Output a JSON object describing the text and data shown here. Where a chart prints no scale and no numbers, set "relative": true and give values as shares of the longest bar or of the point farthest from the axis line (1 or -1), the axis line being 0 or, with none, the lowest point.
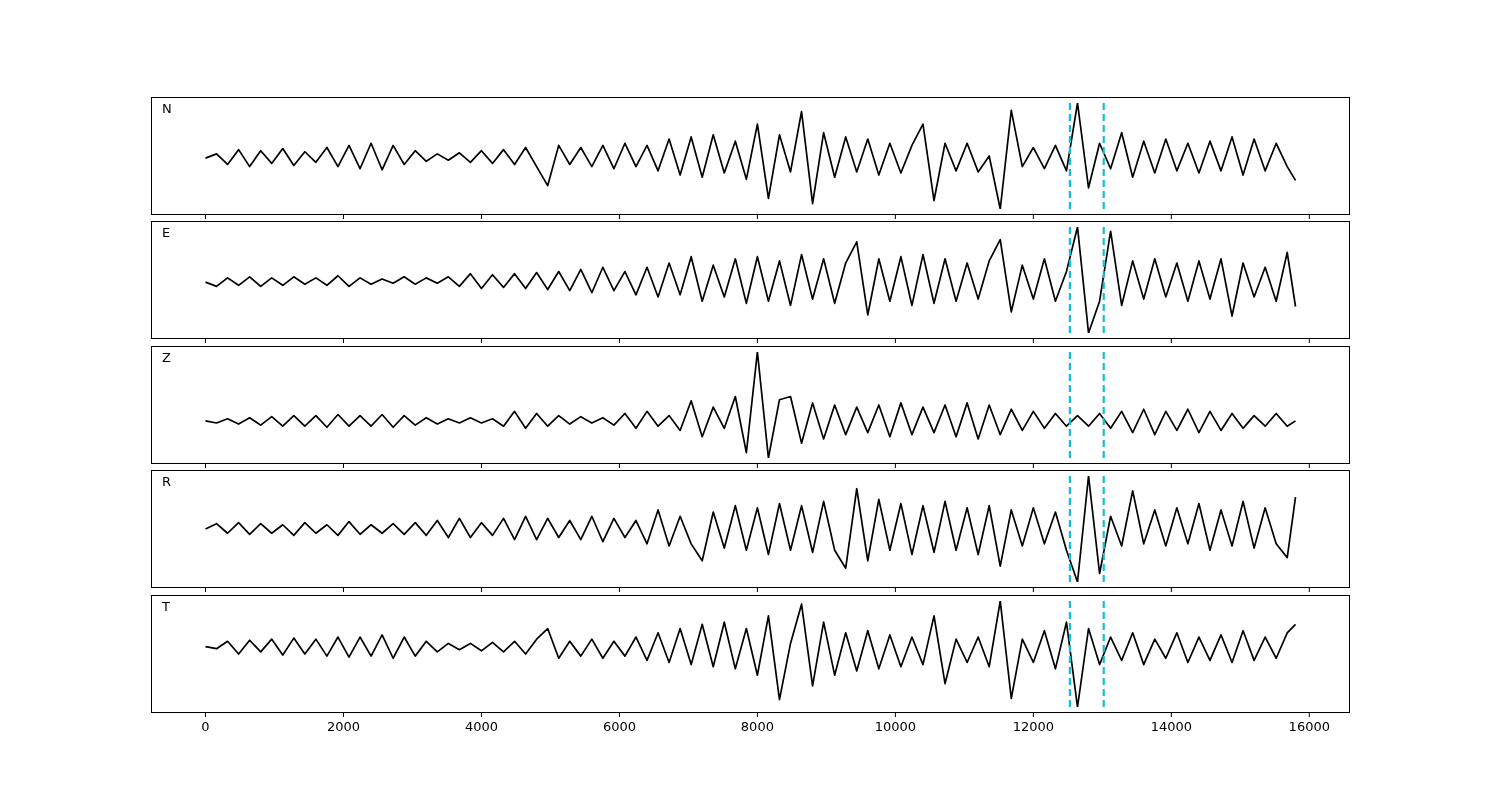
{
  "chart_data": [
    {
      "type": "line",
      "title": "N",
      "relative": true,
      "tick_labels": false,
      "xlim": [
        -790,
        16590
      ],
      "xticks": [
        0,
        2000,
        4000,
        6000,
        8000,
        10000,
        12000,
        14000,
        16000
      ],
      "x": [
        0,
        160,
        320,
        480,
        640,
        800,
        960,
        1120,
        1280,
        1440,
        1600,
        1760,
        1920,
        2080,
        2240,
        2400,
        2560,
        2720,
        2880,
        3040,
        3200,
        3360,
        3520,
        3680,
        3840,
        4000,
        4160,
        4320,
        4480,
        4640,
        4800,
        4960,
        5120,
        5280,
        5440,
        5600,
        5760,
        5920,
        6080,
        6240,
        6400,
        6560,
        6720,
        6880,
        7040,
        7200,
        7360,
        7520,
        7680,
        7840,
        8000,
        8160,
        8320,
        8480,
        8640,
        8800,
        8960,
        9120,
        9280,
        9440,
        9600,
        9760,
        9920,
        10080,
        10240,
        10400,
        10560,
        10720,
        10880,
        11040,
        11200,
        11360,
        11520,
        11680,
        11840,
        12000,
        12160,
        12320,
        12480,
        12640,
        12800,
        12960,
        13120,
        13280,
        13440,
        13600,
        13760,
        13920,
        14080,
        14240,
        14400,
        14560,
        14720,
        14880,
        15040,
        15200,
        15360,
        15520,
        15680,
        15800
      ],
      "ref_lines": [
        {
          "axis": "x",
          "value": 12530,
          "color": "#17becf",
          "line_style": "dashed"
        },
        {
          "axis": "x",
          "value": 13020,
          "color": "#17becf",
          "line_style": "dashed"
        }
      ],
      "series": [
        {
          "color": "#000000",
          "values": [
            0.48,
            0.52,
            0.42,
            0.56,
            0.4,
            0.55,
            0.43,
            0.57,
            0.41,
            0.54,
            0.44,
            0.58,
            0.4,
            0.6,
            0.38,
            0.62,
            0.37,
            0.6,
            0.42,
            0.55,
            0.45,
            0.52,
            0.46,
            0.53,
            0.44,
            0.55,
            0.43,
            0.56,
            0.42,
            0.58,
            0.4,
            0.22,
            0.6,
            0.42,
            0.58,
            0.4,
            0.6,
            0.38,
            0.62,
            0.4,
            0.6,
            0.36,
            0.66,
            0.32,
            0.68,
            0.3,
            0.7,
            0.34,
            0.64,
            0.28,
            0.8,
            0.1,
            0.7,
            0.35,
            0.92,
            0.05,
            0.72,
            0.3,
            0.68,
            0.35,
            0.66,
            0.32,
            0.62,
            0.34,
            0.6,
            0.8,
            0.08,
            0.62,
            0.36,
            0.62,
            0.35,
            0.5,
            0.0,
            0.93,
            0.4,
            0.58,
            0.38,
            0.6,
            0.36,
            1.0,
            0.2,
            0.62,
            0.38,
            0.72,
            0.3,
            0.64,
            0.34,
            0.66,
            0.36,
            0.62,
            0.34,
            0.64,
            0.36,
            0.68,
            0.32,
            0.66,
            0.36,
            0.62,
            0.4,
            0.27
          ]
        }
      ]
    },
    {
      "type": "line",
      "title": "E",
      "relative": true,
      "tick_labels": false,
      "xlim": [
        -790,
        16590
      ],
      "xticks": [
        0,
        2000,
        4000,
        6000,
        8000,
        10000,
        12000,
        14000,
        16000
      ],
      "x": [
        0,
        160,
        320,
        480,
        640,
        800,
        960,
        1120,
        1280,
        1440,
        1600,
        1760,
        1920,
        2080,
        2240,
        2400,
        2560,
        2720,
        2880,
        3040,
        3200,
        3360,
        3520,
        3680,
        3840,
        4000,
        4160,
        4320,
        4480,
        4640,
        4800,
        4960,
        5120,
        5280,
        5440,
        5600,
        5760,
        5920,
        6080,
        6240,
        6400,
        6560,
        6720,
        6880,
        7040,
        7200,
        7360,
        7520,
        7680,
        7840,
        8000,
        8160,
        8320,
        8480,
        8640,
        8800,
        8960,
        9120,
        9280,
        9440,
        9600,
        9760,
        9920,
        10080,
        10240,
        10400,
        10560,
        10720,
        10880,
        11040,
        11200,
        11360,
        11520,
        11680,
        11840,
        12000,
        12160,
        12320,
        12480,
        12640,
        12800,
        12960,
        13120,
        13280,
        13440,
        13600,
        13760,
        13920,
        14080,
        14240,
        14400,
        14560,
        14720,
        14880,
        15040,
        15200,
        15360,
        15520,
        15680,
        15800
      ],
      "ref_lines": [
        {
          "axis": "x",
          "value": 12530,
          "color": "#17becf",
          "line_style": "dashed"
        },
        {
          "axis": "x",
          "value": 13020,
          "color": "#17becf",
          "line_style": "dashed"
        }
      ],
      "series": [
        {
          "color": "#000000",
          "values": [
            0.48,
            0.44,
            0.52,
            0.45,
            0.53,
            0.44,
            0.52,
            0.45,
            0.53,
            0.46,
            0.52,
            0.45,
            0.54,
            0.44,
            0.52,
            0.46,
            0.51,
            0.47,
            0.53,
            0.46,
            0.52,
            0.47,
            0.53,
            0.44,
            0.56,
            0.42,
            0.55,
            0.43,
            0.56,
            0.42,
            0.57,
            0.41,
            0.58,
            0.4,
            0.6,
            0.38,
            0.62,
            0.4,
            0.58,
            0.36,
            0.62,
            0.34,
            0.66,
            0.36,
            0.72,
            0.3,
            0.64,
            0.34,
            0.7,
            0.28,
            0.72,
            0.3,
            0.68,
            0.26,
            0.74,
            0.32,
            0.7,
            0.28,
            0.66,
            0.86,
            0.17,
            0.7,
            0.3,
            0.72,
            0.26,
            0.74,
            0.28,
            0.7,
            0.3,
            0.66,
            0.32,
            0.68,
            0.88,
            0.2,
            0.64,
            0.32,
            0.7,
            0.3,
            0.58,
            1.0,
            0.0,
            0.3,
            0.96,
            0.26,
            0.68,
            0.32,
            0.7,
            0.34,
            0.66,
            0.3,
            0.68,
            0.32,
            0.7,
            0.16,
            0.66,
            0.34,
            0.62,
            0.3,
            0.76,
            0.25
          ]
        }
      ]
    },
    {
      "type": "line",
      "title": "Z",
      "relative": true,
      "tick_labels": false,
      "xlim": [
        -790,
        16590
      ],
      "xticks": [
        0,
        2000,
        4000,
        6000,
        8000,
        10000,
        12000,
        14000,
        16000
      ],
      "x": [
        0,
        160,
        320,
        480,
        640,
        800,
        960,
        1120,
        1280,
        1440,
        1600,
        1760,
        1920,
        2080,
        2240,
        2400,
        2560,
        2720,
        2880,
        3040,
        3200,
        3360,
        3520,
        3680,
        3840,
        4000,
        4160,
        4320,
        4480,
        4640,
        4800,
        4960,
        5120,
        5280,
        5440,
        5600,
        5760,
        5920,
        6080,
        6240,
        6400,
        6560,
        6720,
        6880,
        7040,
        7200,
        7360,
        7520,
        7680,
        7840,
        8000,
        8160,
        8320,
        8480,
        8640,
        8800,
        8960,
        9120,
        9280,
        9440,
        9600,
        9760,
        9920,
        10080,
        10240,
        10400,
        10560,
        10720,
        10880,
        11040,
        11200,
        11360,
        11520,
        11680,
        11840,
        12000,
        12160,
        12320,
        12480,
        12640,
        12800,
        12960,
        13120,
        13280,
        13440,
        13600,
        13760,
        13920,
        14080,
        14240,
        14400,
        14560,
        14720,
        14880,
        15040,
        15200,
        15360,
        15520,
        15680,
        15800
      ],
      "ref_lines": [
        {
          "axis": "x",
          "value": 12530,
          "color": "#17becf",
          "line_style": "dashed"
        },
        {
          "axis": "x",
          "value": 13020,
          "color": "#17becf",
          "line_style": "dashed"
        }
      ],
      "series": [
        {
          "color": "#000000",
          "values": [
            0.35,
            0.33,
            0.37,
            0.32,
            0.38,
            0.31,
            0.39,
            0.3,
            0.4,
            0.3,
            0.4,
            0.29,
            0.41,
            0.3,
            0.4,
            0.3,
            0.41,
            0.29,
            0.4,
            0.31,
            0.38,
            0.32,
            0.37,
            0.33,
            0.38,
            0.33,
            0.37,
            0.3,
            0.44,
            0.28,
            0.42,
            0.3,
            0.4,
            0.32,
            0.39,
            0.33,
            0.38,
            0.31,
            0.42,
            0.28,
            0.44,
            0.3,
            0.4,
            0.26,
            0.54,
            0.2,
            0.48,
            0.28,
            0.58,
            0.05,
            1.0,
            0.0,
            0.55,
            0.58,
            0.14,
            0.52,
            0.18,
            0.5,
            0.22,
            0.48,
            0.24,
            0.5,
            0.2,
            0.52,
            0.22,
            0.48,
            0.24,
            0.5,
            0.2,
            0.52,
            0.18,
            0.5,
            0.22,
            0.46,
            0.26,
            0.44,
            0.28,
            0.42,
            0.3,
            0.4,
            0.3,
            0.42,
            0.28,
            0.44,
            0.24,
            0.46,
            0.22,
            0.44,
            0.26,
            0.46,
            0.24,
            0.44,
            0.26,
            0.42,
            0.28,
            0.4,
            0.3,
            0.42,
            0.3,
            0.35
          ]
        }
      ]
    },
    {
      "type": "line",
      "title": "R",
      "relative": true,
      "tick_labels": false,
      "xlim": [
        -790,
        16590
      ],
      "xticks": [
        0,
        2000,
        4000,
        6000,
        8000,
        10000,
        12000,
        14000,
        16000
      ],
      "x": [
        0,
        160,
        320,
        480,
        640,
        800,
        960,
        1120,
        1280,
        1440,
        1600,
        1760,
        1920,
        2080,
        2240,
        2400,
        2560,
        2720,
        2880,
        3040,
        3200,
        3360,
        3520,
        3680,
        3840,
        4000,
        4160,
        4320,
        4480,
        4640,
        4800,
        4960,
        5120,
        5280,
        5440,
        5600,
        5760,
        5920,
        6080,
        6240,
        6400,
        6560,
        6720,
        6880,
        7040,
        7200,
        7360,
        7520,
        7680,
        7840,
        8000,
        8160,
        8320,
        8480,
        8640,
        8800,
        8960,
        9120,
        9280,
        9440,
        9600,
        9760,
        9920,
        10080,
        10240,
        10400,
        10560,
        10720,
        10880,
        11040,
        11200,
        11360,
        11520,
        11680,
        11840,
        12000,
        12160,
        12320,
        12480,
        12640,
        12800,
        12960,
        13120,
        13280,
        13440,
        13600,
        13760,
        13920,
        14080,
        14240,
        14400,
        14560,
        14720,
        14880,
        15040,
        15200,
        15360,
        15520,
        15680,
        15800
      ],
      "ref_lines": [
        {
          "axis": "x",
          "value": 12530,
          "color": "#17becf",
          "line_style": "dashed"
        },
        {
          "axis": "x",
          "value": 13020,
          "color": "#17becf",
          "line_style": "dashed"
        }
      ],
      "series": [
        {
          "color": "#000000",
          "values": [
            0.5,
            0.55,
            0.46,
            0.56,
            0.45,
            0.55,
            0.46,
            0.54,
            0.44,
            0.56,
            0.46,
            0.54,
            0.44,
            0.57,
            0.45,
            0.54,
            0.46,
            0.55,
            0.45,
            0.56,
            0.44,
            0.58,
            0.42,
            0.6,
            0.42,
            0.56,
            0.44,
            0.6,
            0.4,
            0.62,
            0.4,
            0.6,
            0.42,
            0.58,
            0.4,
            0.62,
            0.38,
            0.6,
            0.42,
            0.58,
            0.36,
            0.68,
            0.34,
            0.62,
            0.36,
            0.2,
            0.66,
            0.32,
            0.72,
            0.3,
            0.7,
            0.26,
            0.74,
            0.3,
            0.72,
            0.28,
            0.76,
            0.3,
            0.13,
            0.88,
            0.2,
            0.78,
            0.3,
            0.74,
            0.26,
            0.72,
            0.28,
            0.76,
            0.3,
            0.7,
            0.26,
            0.72,
            0.15,
            0.68,
            0.34,
            0.7,
            0.36,
            0.66,
            0.3,
            0.0,
            1.0,
            0.08,
            0.62,
            0.34,
            0.86,
            0.36,
            0.68,
            0.34,
            0.7,
            0.36,
            0.74,
            0.3,
            0.68,
            0.34,
            0.76,
            0.32,
            0.7,
            0.36,
            0.23,
            0.8
          ]
        }
      ]
    },
    {
      "type": "line",
      "title": "T",
      "relative": true,
      "tick_labels": "x",
      "xlim": [
        -790,
        16590
      ],
      "xticks": [
        0,
        2000,
        4000,
        6000,
        8000,
        10000,
        12000,
        14000,
        16000
      ],
      "x": [
        0,
        160,
        320,
        480,
        640,
        800,
        960,
        1120,
        1280,
        1440,
        1600,
        1760,
        1920,
        2080,
        2240,
        2400,
        2560,
        2720,
        2880,
        3040,
        3200,
        3360,
        3520,
        3680,
        3840,
        4000,
        4160,
        4320,
        4480,
        4640,
        4800,
        4960,
        5120,
        5280,
        5440,
        5600,
        5760,
        5920,
        6080,
        6240,
        6400,
        6560,
        6720,
        6880,
        7040,
        7200,
        7360,
        7520,
        7680,
        7840,
        8000,
        8160,
        8320,
        8480,
        8640,
        8800,
        8960,
        9120,
        9280,
        9440,
        9600,
        9760,
        9920,
        10080,
        10240,
        10400,
        10560,
        10720,
        10880,
        11040,
        11200,
        11360,
        11520,
        11680,
        11840,
        12000,
        12160,
        12320,
        12480,
        12640,
        12800,
        12960,
        13120,
        13280,
        13440,
        13600,
        13760,
        13920,
        14080,
        14240,
        14400,
        14560,
        14720,
        14880,
        15040,
        15200,
        15360,
        15520,
        15680,
        15800
      ],
      "ref_lines": [
        {
          "axis": "x",
          "value": 12530,
          "color": "#17becf",
          "line_style": "dashed"
        },
        {
          "axis": "x",
          "value": 13020,
          "color": "#17becf",
          "line_style": "dashed"
        }
      ],
      "series": [
        {
          "color": "#000000",
          "values": [
            0.57,
            0.55,
            0.62,
            0.5,
            0.63,
            0.52,
            0.64,
            0.49,
            0.65,
            0.5,
            0.64,
            0.48,
            0.66,
            0.47,
            0.66,
            0.48,
            0.68,
            0.46,
            0.66,
            0.48,
            0.62,
            0.52,
            0.6,
            0.54,
            0.6,
            0.53,
            0.61,
            0.52,
            0.62,
            0.5,
            0.64,
            0.74,
            0.46,
            0.62,
            0.48,
            0.64,
            0.46,
            0.62,
            0.48,
            0.66,
            0.44,
            0.7,
            0.42,
            0.74,
            0.4,
            0.78,
            0.38,
            0.8,
            0.36,
            0.74,
            0.3,
            0.86,
            0.07,
            0.6,
            0.97,
            0.2,
            0.8,
            0.3,
            0.7,
            0.34,
            0.72,
            0.36,
            0.68,
            0.38,
            0.66,
            0.4,
            0.86,
            0.22,
            0.64,
            0.42,
            0.66,
            0.38,
            1.0,
            0.08,
            0.64,
            0.42,
            0.72,
            0.36,
            0.8,
            0.0,
            0.74,
            0.4,
            0.66,
            0.44,
            0.7,
            0.4,
            0.64,
            0.46,
            0.7,
            0.42,
            0.66,
            0.44,
            0.68,
            0.42,
            0.72,
            0.44,
            0.66,
            0.46,
            0.7,
            0.78
          ]
        }
      ]
    }
  ]
}
